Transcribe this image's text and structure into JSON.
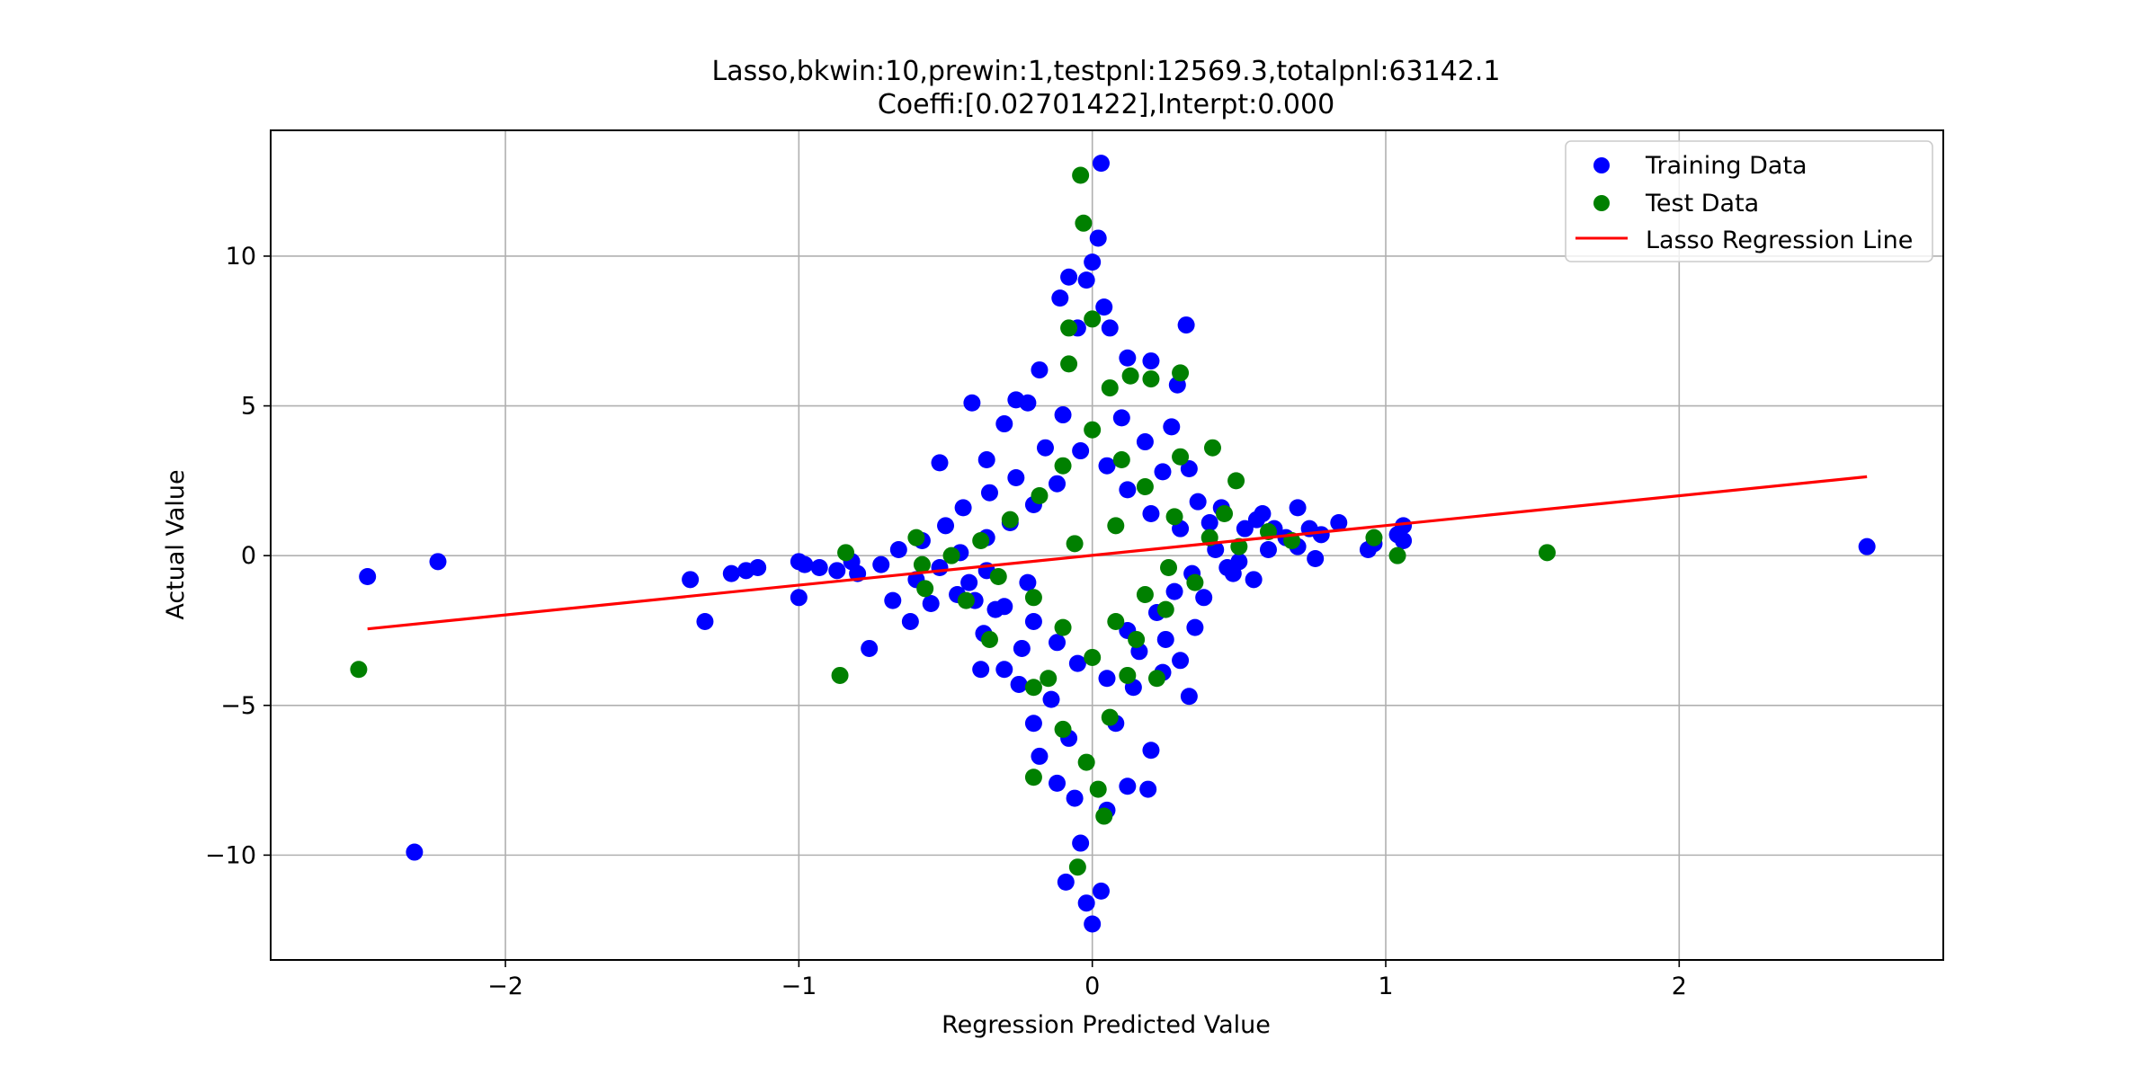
{
  "chart_data": {
    "type": "scatter",
    "title": "Lasso,bkwin:10,prewin:1,testpnl:12569.3,totalpnl:63142.1",
    "subtitle": "Coeffi:[0.02701422],Interpt:0.000",
    "xlabel": "Regression Predicted Value",
    "ylabel": "Actual Value",
    "xlim": [
      -2.8,
      2.9
    ],
    "ylim": [
      -13.5,
      14.2
    ],
    "xticks": [
      -2,
      -1,
      0,
      1,
      2
    ],
    "xtick_labels": [
      "−2",
      "−1",
      "0",
      "1",
      "2"
    ],
    "yticks": [
      -10,
      -5,
      0,
      5,
      10
    ],
    "ytick_labels": [
      "−10",
      "−5",
      "0",
      "5",
      "10"
    ],
    "grid": true,
    "legend_position": "top-right",
    "series": [
      {
        "name": "Training Data",
        "kind": "scatter",
        "color": "#0000ff",
        "points": [
          [
            -2.47,
            -0.7
          ],
          [
            -2.23,
            -0.2
          ],
          [
            -2.31,
            -9.9
          ],
          [
            -1.37,
            -0.8
          ],
          [
            -1.32,
            -2.2
          ],
          [
            -1.23,
            -0.6
          ],
          [
            -1.18,
            -0.5
          ],
          [
            -1.14,
            -0.4
          ],
          [
            -1.0,
            -1.4
          ],
          [
            -1.0,
            -0.2
          ],
          [
            -0.98,
            -0.3
          ],
          [
            -0.93,
            -0.4
          ],
          [
            -0.87,
            -0.5
          ],
          [
            -0.82,
            -0.2
          ],
          [
            -0.76,
            -3.1
          ],
          [
            -0.52,
            3.1
          ],
          [
            -0.41,
            5.1
          ],
          [
            -0.36,
            3.2
          ],
          [
            -0.3,
            4.4
          ],
          [
            -0.26,
            5.2
          ],
          [
            -0.22,
            5.1
          ],
          [
            -0.18,
            6.2
          ],
          [
            -0.11,
            8.6
          ],
          [
            -0.08,
            9.3
          ],
          [
            -0.05,
            7.6
          ],
          [
            -0.02,
            9.2
          ],
          [
            0.02,
            10.6
          ],
          [
            0.03,
            13.1
          ],
          [
            0.0,
            9.8
          ],
          [
            0.04,
            8.3
          ],
          [
            0.06,
            7.6
          ],
          [
            0.12,
            6.6
          ],
          [
            0.2,
            6.5
          ],
          [
            0.32,
            7.7
          ],
          [
            0.29,
            5.7
          ],
          [
            0.27,
            4.3
          ],
          [
            0.33,
            2.9
          ],
          [
            0.44,
            1.6
          ],
          [
            0.58,
            1.4
          ],
          [
            0.7,
            1.6
          ],
          [
            0.78,
            0.7
          ],
          [
            0.84,
            1.1
          ],
          [
            0.96,
            0.4
          ],
          [
            0.94,
            0.2
          ],
          [
            1.04,
            0.7
          ],
          [
            1.06,
            1.0
          ],
          [
            1.06,
            0.5
          ],
          [
            2.64,
            0.3
          ],
          [
            0.76,
            -0.1
          ],
          [
            0.55,
            -0.8
          ],
          [
            0.48,
            -0.6
          ],
          [
            0.35,
            -2.4
          ],
          [
            0.3,
            -3.5
          ],
          [
            0.33,
            -4.7
          ],
          [
            0.2,
            -6.5
          ],
          [
            0.19,
            -7.8
          ],
          [
            0.12,
            -7.7
          ],
          [
            0.05,
            -8.5
          ],
          [
            0.03,
            -11.2
          ],
          [
            0.0,
            -12.3
          ],
          [
            -0.02,
            -11.6
          ],
          [
            -0.04,
            -9.6
          ],
          [
            -0.06,
            -8.1
          ],
          [
            -0.09,
            -10.9
          ],
          [
            -0.12,
            -7.6
          ],
          [
            -0.18,
            -6.7
          ],
          [
            -0.2,
            -5.6
          ],
          [
            -0.25,
            -4.3
          ],
          [
            -0.3,
            -3.8
          ],
          [
            -0.38,
            -3.8
          ],
          [
            -0.37,
            -2.6
          ],
          [
            -0.33,
            -1.8
          ],
          [
            -0.55,
            -1.6
          ],
          [
            -0.62,
            -2.2
          ],
          [
            -0.68,
            -1.5
          ],
          [
            -0.46,
            -1.3
          ],
          [
            -0.4,
            -1.5
          ],
          [
            -0.24,
            -3.1
          ],
          [
            -0.14,
            -4.8
          ],
          [
            -0.08,
            -6.1
          ],
          [
            0.08,
            -5.6
          ],
          [
            0.14,
            -4.4
          ],
          [
            0.24,
            -3.9
          ],
          [
            0.25,
            -2.8
          ],
          [
            0.16,
            -3.2
          ],
          [
            0.38,
            -1.4
          ],
          [
            0.46,
            -0.4
          ],
          [
            0.52,
            0.9
          ],
          [
            0.6,
            0.2
          ],
          [
            0.66,
            0.6
          ],
          [
            0.4,
            1.1
          ],
          [
            0.36,
            1.8
          ],
          [
            0.24,
            2.8
          ],
          [
            0.18,
            3.8
          ],
          [
            0.1,
            4.6
          ],
          [
            -0.1,
            4.7
          ],
          [
            -0.16,
            3.6
          ],
          [
            -0.26,
            2.6
          ],
          [
            -0.35,
            2.1
          ],
          [
            -0.44,
            1.6
          ],
          [
            -0.5,
            1.0
          ],
          [
            -0.58,
            0.5
          ],
          [
            -0.66,
            0.2
          ],
          [
            -0.72,
            -0.3
          ],
          [
            -0.8,
            -0.6
          ],
          [
            -0.6,
            -0.8
          ],
          [
            -0.42,
            -0.9
          ],
          [
            -0.3,
            -1.7
          ],
          [
            -0.2,
            -2.2
          ],
          [
            -0.12,
            -2.9
          ],
          [
            -0.05,
            -3.6
          ],
          [
            0.05,
            -4.1
          ],
          [
            0.12,
            -2.5
          ],
          [
            0.22,
            -1.9
          ],
          [
            0.28,
            -1.2
          ],
          [
            0.34,
            -0.6
          ],
          [
            0.42,
            0.2
          ],
          [
            0.3,
            0.9
          ],
          [
            0.2,
            1.4
          ],
          [
            0.12,
            2.2
          ],
          [
            0.05,
            3.0
          ],
          [
            -0.04,
            3.5
          ],
          [
            -0.12,
            2.4
          ],
          [
            -0.2,
            1.7
          ],
          [
            -0.28,
            1.1
          ],
          [
            -0.36,
            0.6
          ],
          [
            -0.45,
            0.1
          ],
          [
            -0.52,
            -0.4
          ],
          [
            -0.36,
            -0.5
          ],
          [
            -0.22,
            -0.9
          ],
          [
            0.5,
            -0.2
          ],
          [
            0.62,
            0.9
          ],
          [
            0.7,
            0.3
          ],
          [
            0.74,
            0.9
          ],
          [
            0.56,
            1.2
          ]
        ]
      },
      {
        "name": "Test Data",
        "kind": "scatter",
        "color": "#008000",
        "points": [
          [
            -2.5,
            -3.8
          ],
          [
            -0.86,
            -4.0
          ],
          [
            -0.84,
            0.1
          ],
          [
            -0.6,
            0.6
          ],
          [
            -0.57,
            -1.1
          ],
          [
            -0.43,
            -1.5
          ],
          [
            -0.35,
            -2.8
          ],
          [
            -0.2,
            -4.4
          ],
          [
            -0.2,
            -7.4
          ],
          [
            -0.05,
            -10.4
          ],
          [
            -0.04,
            12.7
          ],
          [
            -0.03,
            11.1
          ],
          [
            0.0,
            7.9
          ],
          [
            -0.08,
            7.6
          ],
          [
            -0.08,
            6.4
          ],
          [
            0.06,
            5.6
          ],
          [
            0.13,
            6.0
          ],
          [
            0.2,
            5.9
          ],
          [
            0.3,
            6.1
          ],
          [
            0.3,
            3.3
          ],
          [
            0.41,
            3.6
          ],
          [
            0.49,
            2.5
          ],
          [
            0.45,
            1.4
          ],
          [
            0.6,
            0.8
          ],
          [
            0.68,
            0.5
          ],
          [
            0.96,
            0.6
          ],
          [
            1.04,
            0.0
          ],
          [
            1.55,
            0.1
          ],
          [
            0.22,
            -4.1
          ],
          [
            0.12,
            -4.0
          ],
          [
            0.06,
            -5.4
          ],
          [
            0.04,
            -8.7
          ],
          [
            -0.02,
            -6.9
          ],
          [
            0.02,
            -7.8
          ],
          [
            -0.1,
            -5.8
          ],
          [
            -0.15,
            -4.1
          ],
          [
            0.15,
            -2.8
          ],
          [
            0.25,
            -1.8
          ],
          [
            0.35,
            -0.9
          ],
          [
            0.4,
            0.6
          ],
          [
            0.28,
            1.3
          ],
          [
            0.18,
            2.3
          ],
          [
            0.1,
            3.2
          ],
          [
            0.0,
            4.2
          ],
          [
            -0.1,
            3.0
          ],
          [
            -0.18,
            2.0
          ],
          [
            -0.28,
            1.2
          ],
          [
            -0.38,
            0.5
          ],
          [
            -0.48,
            0.0
          ],
          [
            -0.58,
            -0.3
          ],
          [
            -0.32,
            -0.7
          ],
          [
            -0.2,
            -1.4
          ],
          [
            -0.1,
            -2.4
          ],
          [
            0.0,
            -3.4
          ],
          [
            0.08,
            -2.2
          ],
          [
            0.18,
            -1.3
          ],
          [
            0.26,
            -0.4
          ],
          [
            0.5,
            0.3
          ],
          [
            0.08,
            1.0
          ],
          [
            -0.06,
            0.4
          ]
        ]
      },
      {
        "name": "Lasso Regression Line",
        "kind": "line",
        "color": "#ff0000",
        "x": [
          -2.47,
          2.64
        ],
        "y": [
          -2.447,
          2.635
        ]
      }
    ],
    "legend": [
      {
        "label": "Training Data",
        "marker": "dot",
        "color": "#0000ff"
      },
      {
        "label": "Test Data",
        "marker": "dot",
        "color": "#008000"
      },
      {
        "label": "Lasso Regression Line",
        "marker": "line",
        "color": "#ff0000"
      }
    ]
  }
}
